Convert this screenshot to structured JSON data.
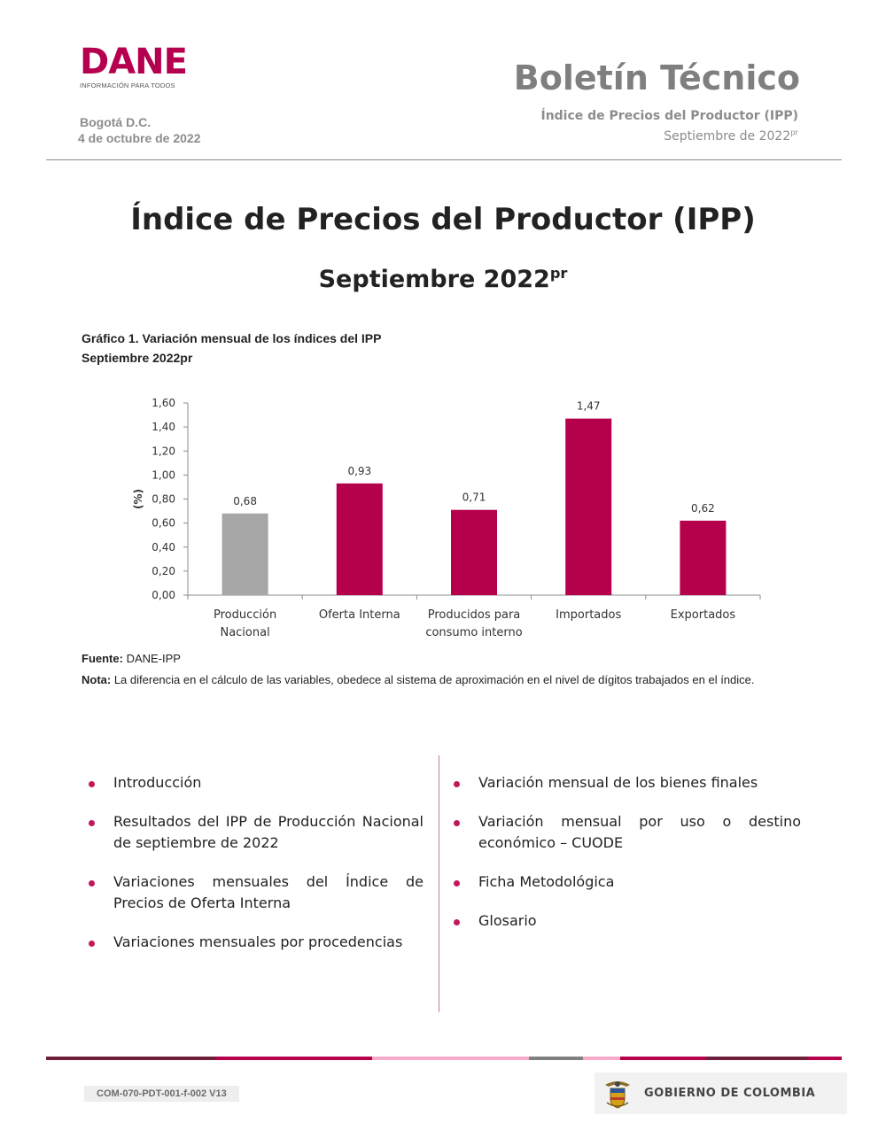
{
  "header": {
    "logo_word": "DANE",
    "logo_tagline": "INFORMACIÓN PARA TODOS",
    "city": "Bogotá D.C.",
    "date": "4 de octubre de 2022",
    "bulletin_title": "Boletín Técnico",
    "bulletin_subtitle": "Índice de Precios del Productor (IPP)",
    "period_text": "Septiembre de 2022",
    "period_sup": "pr"
  },
  "title": {
    "main": "Índice de Precios del Productor (IPP)",
    "sub_text": "Septiembre 2022",
    "sub_sup": "pr"
  },
  "chart_caption": {
    "line1": "Gráfico 1. Variación mensual de los índices del IPP",
    "line2": "Septiembre 2022pr"
  },
  "chart_data": {
    "type": "bar",
    "categories": [
      [
        "Producción",
        "Nacional"
      ],
      [
        "Oferta Interna"
      ],
      [
        "Producidos para",
        "consumo interno"
      ],
      [
        "Importados"
      ],
      [
        "Exportados"
      ]
    ],
    "values": [
      0.68,
      0.93,
      0.71,
      1.47,
      0.62
    ],
    "value_labels": [
      "0,68",
      "0,93",
      "0,71",
      "1,47",
      "0,62"
    ],
    "colors": [
      "#a6a6a6",
      "#b5004b",
      "#b5004b",
      "#b5004b",
      "#b5004b"
    ],
    "ylabel": "(%)",
    "ylim": [
      0,
      1.6
    ],
    "yticks": [
      0,
      0.2,
      0.4,
      0.6,
      0.8,
      1.0,
      1.2,
      1.4,
      1.6
    ],
    "ytick_labels": [
      "0,00",
      "0,20",
      "0,40",
      "0,60",
      "0,80",
      "1,00",
      "1,20",
      "1,40",
      "1,60"
    ],
    "grid": false,
    "legend": "none"
  },
  "source": {
    "label": "Fuente:",
    "text": " DANE-IPP"
  },
  "note": {
    "label": "Nota:",
    "text": " La diferencia en el cálculo de las variables, obedece al sistema de aproximación en el nivel de dígitos trabajados en el índice."
  },
  "toc": {
    "left": [
      "Introducción",
      "Resultados del IPP de Producción Nacional de septiembre de 2022",
      "Variaciones mensuales del Índice de Precios de Oferta Interna",
      "Variaciones mensuales por procedencias"
    ],
    "right": [
      "Variación mensual de los bienes finales",
      "Variación mensual por uso o destino económico – CUODE",
      "Ficha Metodológica",
      "Glosario"
    ]
  },
  "footer": {
    "code": "COM-070-PDT-001-f-002 V13",
    "gov_text": "GOBIERNO DE COLOMBIA",
    "bar_colors": [
      "#6d1f3c",
      "#b5004b",
      "#f6a9c9",
      "#f6a9c9",
      "#7f7f7f",
      "#f6a9c9",
      "#b5004b",
      "#6d1f3c",
      "#b5004b"
    ]
  }
}
